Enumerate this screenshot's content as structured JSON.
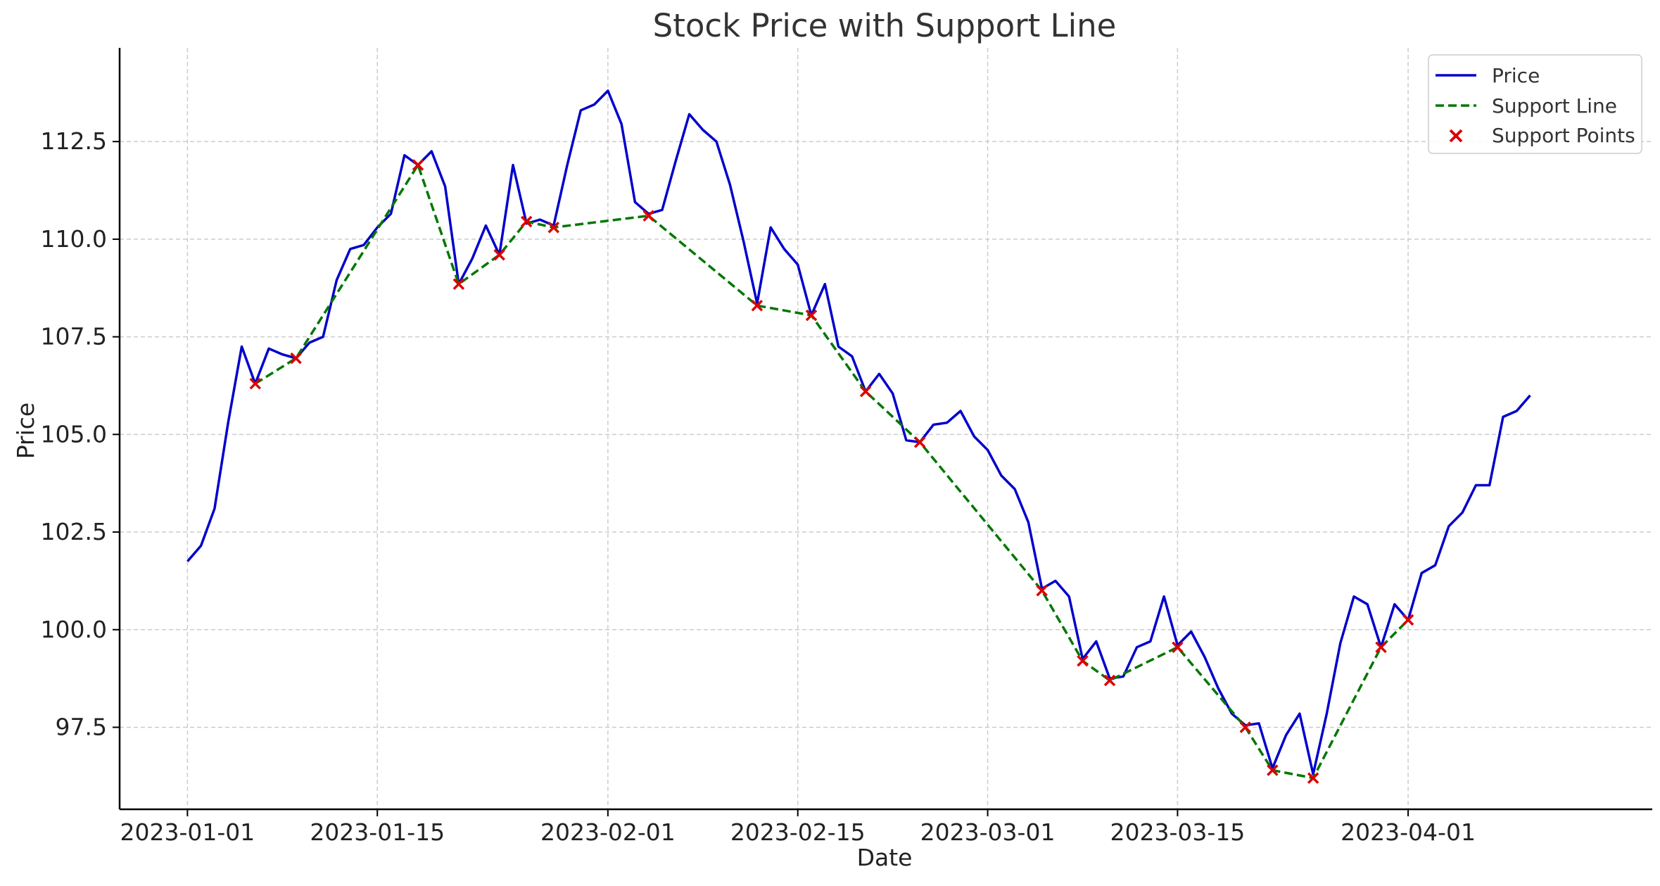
{
  "chart_data": {
    "type": "line",
    "title": "Stock Price with Support Line",
    "xlabel": "Date",
    "ylabel": "Price",
    "x_start": "2023-01-01",
    "xlim": [
      "2022-12-27",
      "2023-04-19"
    ],
    "ylim": [
      95.4,
      114.9
    ],
    "x_ticks": [
      "2023-01-01",
      "2023-01-15",
      "2023-02-01",
      "2023-02-15",
      "2023-03-01",
      "2023-03-15",
      "2023-04-01"
    ],
    "y_ticks": [
      "97.5",
      "100.0",
      "102.5",
      "105.0",
      "107.5",
      "110.0",
      "112.5"
    ],
    "grid": true,
    "legend_position": "top-right",
    "colors": {
      "price": "#0000cc",
      "support_line": "#007700",
      "support_points": "#dd0000"
    },
    "series": [
      {
        "name": "Price",
        "style": "solid",
        "x": [
          "2023-01-01",
          "2023-01-02",
          "2023-01-03",
          "2023-01-04",
          "2023-01-05",
          "2023-01-06",
          "2023-01-07",
          "2023-01-08",
          "2023-01-09",
          "2023-01-10",
          "2023-01-11",
          "2023-01-12",
          "2023-01-13",
          "2023-01-14",
          "2023-01-15",
          "2023-01-16",
          "2023-01-17",
          "2023-01-18",
          "2023-01-19",
          "2023-01-20",
          "2023-01-21",
          "2023-01-22",
          "2023-01-23",
          "2023-01-24",
          "2023-01-25",
          "2023-01-26",
          "2023-01-27",
          "2023-01-28",
          "2023-01-29",
          "2023-01-30",
          "2023-01-31",
          "2023-02-01",
          "2023-02-02",
          "2023-02-03",
          "2023-02-04",
          "2023-02-05",
          "2023-02-06",
          "2023-02-07",
          "2023-02-08",
          "2023-02-09",
          "2023-02-10",
          "2023-02-11",
          "2023-02-12",
          "2023-02-13",
          "2023-02-14",
          "2023-02-15",
          "2023-02-16",
          "2023-02-17",
          "2023-02-18",
          "2023-02-19",
          "2023-02-20",
          "2023-02-21",
          "2023-02-22",
          "2023-02-23",
          "2023-02-24",
          "2023-02-25",
          "2023-02-26",
          "2023-02-27",
          "2023-02-28",
          "2023-03-01",
          "2023-03-02",
          "2023-03-03",
          "2023-03-04",
          "2023-03-05",
          "2023-03-06",
          "2023-03-07",
          "2023-03-08",
          "2023-03-09",
          "2023-03-10",
          "2023-03-11",
          "2023-03-12",
          "2023-03-13",
          "2023-03-14",
          "2023-03-15",
          "2023-03-16",
          "2023-03-17",
          "2023-03-18",
          "2023-03-19",
          "2023-03-20",
          "2023-03-21",
          "2023-03-22",
          "2023-03-23",
          "2023-03-24",
          "2023-03-25",
          "2023-03-26",
          "2023-03-27",
          "2023-03-28",
          "2023-03-29",
          "2023-03-30",
          "2023-03-31",
          "2023-04-01",
          "2023-04-02",
          "2023-04-03",
          "2023-04-04",
          "2023-04-05",
          "2023-04-06",
          "2023-04-07",
          "2023-04-08",
          "2023-04-09",
          "2023-04-10"
        ],
        "y": [
          101.75,
          102.15,
          103.1,
          105.3,
          107.25,
          106.3,
          107.2,
          107.05,
          106.95,
          107.35,
          107.5,
          108.95,
          109.75,
          109.85,
          110.3,
          110.65,
          112.15,
          111.9,
          112.25,
          111.35,
          108.85,
          109.5,
          110.35,
          109.6,
          111.9,
          110.4,
          110.5,
          110.35,
          111.9,
          113.3,
          113.45,
          113.8,
          112.95,
          110.95,
          110.65,
          110.75,
          112.0,
          113.2,
          112.8,
          112.5,
          111.4,
          109.95,
          108.35,
          110.3,
          109.75,
          109.35,
          108.05,
          108.85,
          107.25,
          107.0,
          106.1,
          106.55,
          106.05,
          104.85,
          104.8,
          105.25,
          105.3,
          105.6,
          104.95,
          104.6,
          103.95,
          103.6,
          102.75,
          101.05,
          101.25,
          100.85,
          99.25,
          99.7,
          98.75,
          98.8,
          99.55,
          99.7,
          100.85,
          99.6,
          99.95,
          99.3,
          98.5,
          97.85,
          97.55,
          97.6,
          96.45,
          97.3,
          97.85,
          96.3,
          97.85,
          99.65,
          100.85,
          100.65,
          99.55,
          100.65,
          100.25,
          101.45,
          101.65,
          102.65,
          103.0,
          103.7,
          103.7,
          105.45,
          105.6,
          106.0
        ]
      },
      {
        "name": "Support Line",
        "style": "dashed",
        "x": [
          "2023-01-06",
          "2023-01-09",
          "2023-01-18",
          "2023-01-21",
          "2023-01-24",
          "2023-01-26",
          "2023-01-28",
          "2023-02-04",
          "2023-02-12",
          "2023-02-16",
          "2023-02-20",
          "2023-02-24",
          "2023-03-05",
          "2023-03-08",
          "2023-03-10",
          "2023-03-15",
          "2023-03-20",
          "2023-03-22",
          "2023-03-25",
          "2023-03-30",
          "2023-04-01"
        ],
        "y": [
          106.3,
          106.95,
          111.9,
          108.85,
          109.6,
          110.45,
          110.3,
          110.6,
          108.3,
          108.05,
          106.1,
          104.8,
          101.0,
          99.2,
          98.7,
          99.55,
          97.5,
          96.4,
          96.2,
          99.55,
          100.25
        ]
      },
      {
        "name": "Support Points",
        "style": "marker-x",
        "x": [
          "2023-01-06",
          "2023-01-09",
          "2023-01-18",
          "2023-01-21",
          "2023-01-24",
          "2023-01-26",
          "2023-01-28",
          "2023-02-04",
          "2023-02-12",
          "2023-02-16",
          "2023-02-20",
          "2023-02-24",
          "2023-03-05",
          "2023-03-08",
          "2023-03-10",
          "2023-03-15",
          "2023-03-20",
          "2023-03-22",
          "2023-03-25",
          "2023-03-30",
          "2023-04-01"
        ],
        "y": [
          106.3,
          106.95,
          111.9,
          108.85,
          109.6,
          110.45,
          110.3,
          110.6,
          108.3,
          108.05,
          106.1,
          104.8,
          101.0,
          99.2,
          98.7,
          99.55,
          97.5,
          96.4,
          96.2,
          99.55,
          100.25
        ]
      }
    ]
  }
}
